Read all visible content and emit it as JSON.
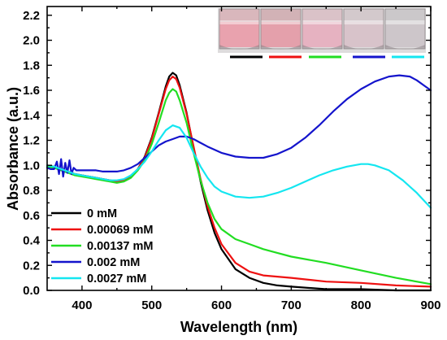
{
  "chart_data": {
    "type": "line",
    "title": "",
    "xlabel": "Wavelength (nm)",
    "ylabel": "Absorbance (a.u.)",
    "xlim": [
      350,
      900
    ],
    "ylim": [
      0,
      2.27
    ],
    "xticks": [
      400,
      500,
      600,
      700,
      800,
      900
    ],
    "xtick_labels": [
      "400",
      "500",
      "600",
      "700",
      "800",
      "900"
    ],
    "yticks": [
      0,
      0.2,
      0.4,
      0.6,
      0.8,
      1.0,
      1.2,
      1.4,
      1.6,
      1.8,
      2.0,
      2.2
    ],
    "ytick_labels": [
      "0.0",
      "0.2",
      "0.4",
      "0.6",
      "0.8",
      "1.0",
      "1.2",
      "1.4",
      "1.6",
      "1.8",
      "2.0",
      "2.2"
    ],
    "grid": false,
    "legend_position": "lower-left",
    "series": [
      {
        "name": "0 mM",
        "color": "#000000",
        "x": [
          350,
          360,
          370,
          380,
          390,
          400,
          410,
          420,
          430,
          440,
          450,
          460,
          470,
          480,
          490,
          500,
          510,
          520,
          525,
          530,
          535,
          540,
          550,
          560,
          570,
          580,
          590,
          600,
          620,
          640,
          660,
          680,
          700,
          750,
          800,
          850,
          900
        ],
        "y": [
          1.0,
          0.99,
          0.97,
          0.95,
          0.93,
          0.92,
          0.91,
          0.9,
          0.89,
          0.88,
          0.87,
          0.88,
          0.91,
          0.97,
          1.07,
          1.22,
          1.42,
          1.63,
          1.71,
          1.74,
          1.72,
          1.64,
          1.42,
          1.14,
          0.87,
          0.64,
          0.46,
          0.33,
          0.17,
          0.1,
          0.06,
          0.04,
          0.03,
          0.01,
          0.01,
          0.0,
          0.0
        ]
      },
      {
        "name": "0.00069 mM",
        "color": "#ee1111",
        "x": [
          350,
          360,
          370,
          380,
          390,
          400,
          410,
          420,
          430,
          440,
          450,
          460,
          470,
          480,
          490,
          500,
          510,
          520,
          525,
          530,
          535,
          540,
          550,
          560,
          570,
          580,
          590,
          600,
          620,
          640,
          660,
          680,
          700,
          750,
          800,
          850,
          900
        ],
        "y": [
          1.0,
          0.99,
          0.97,
          0.95,
          0.93,
          0.92,
          0.91,
          0.9,
          0.89,
          0.88,
          0.87,
          0.88,
          0.91,
          0.97,
          1.06,
          1.21,
          1.41,
          1.61,
          1.68,
          1.71,
          1.69,
          1.62,
          1.41,
          1.15,
          0.89,
          0.67,
          0.5,
          0.37,
          0.22,
          0.15,
          0.12,
          0.11,
          0.1,
          0.07,
          0.06,
          0.04,
          0.03
        ]
      },
      {
        "name": "0.00137 mM",
        "color": "#22dd22",
        "x": [
          350,
          360,
          370,
          380,
          390,
          400,
          410,
          420,
          430,
          440,
          450,
          460,
          470,
          480,
          490,
          500,
          510,
          520,
          525,
          530,
          535,
          540,
          550,
          560,
          570,
          580,
          590,
          600,
          620,
          640,
          660,
          680,
          700,
          750,
          800,
          850,
          900
        ],
        "y": [
          0.99,
          0.98,
          0.96,
          0.94,
          0.92,
          0.91,
          0.9,
          0.89,
          0.88,
          0.87,
          0.86,
          0.87,
          0.9,
          0.96,
          1.04,
          1.17,
          1.34,
          1.52,
          1.58,
          1.61,
          1.59,
          1.52,
          1.34,
          1.1,
          0.88,
          0.7,
          0.57,
          0.49,
          0.41,
          0.37,
          0.33,
          0.3,
          0.27,
          0.22,
          0.16,
          0.1,
          0.05
        ]
      },
      {
        "name": "0.002 mM",
        "color": "#1414cc",
        "x": [
          350,
          355,
          360,
          364,
          367,
          370,
          373,
          376,
          379,
          382,
          385,
          388,
          392,
          400,
          410,
          420,
          430,
          440,
          450,
          460,
          470,
          480,
          490,
          500,
          510,
          520,
          530,
          540,
          550,
          560,
          570,
          580,
          600,
          620,
          640,
          660,
          680,
          700,
          720,
          740,
          760,
          780,
          800,
          820,
          840,
          855,
          870,
          880,
          890,
          900
        ],
        "y": [
          0.98,
          0.97,
          0.97,
          1.03,
          0.93,
          1.05,
          0.91,
          1.02,
          0.94,
          1.04,
          0.93,
          0.98,
          0.96,
          0.96,
          0.96,
          0.96,
          0.95,
          0.95,
          0.95,
          0.96,
          0.98,
          1.01,
          1.06,
          1.11,
          1.16,
          1.19,
          1.21,
          1.23,
          1.23,
          1.21,
          1.18,
          1.15,
          1.1,
          1.07,
          1.06,
          1.06,
          1.09,
          1.14,
          1.22,
          1.32,
          1.43,
          1.53,
          1.61,
          1.67,
          1.71,
          1.72,
          1.71,
          1.68,
          1.64,
          1.6
        ]
      },
      {
        "name": "0.0027 mM",
        "color": "#14e6f0",
        "x": [
          350,
          360,
          370,
          380,
          390,
          400,
          410,
          420,
          430,
          440,
          450,
          460,
          470,
          480,
          490,
          500,
          510,
          520,
          530,
          540,
          550,
          560,
          570,
          580,
          590,
          600,
          620,
          640,
          660,
          680,
          700,
          720,
          740,
          760,
          780,
          800,
          810,
          820,
          840,
          860,
          880,
          900
        ],
        "y": [
          1.0,
          0.99,
          0.97,
          0.95,
          0.93,
          0.92,
          0.91,
          0.9,
          0.89,
          0.88,
          0.88,
          0.89,
          0.92,
          0.97,
          1.03,
          1.11,
          1.2,
          1.28,
          1.32,
          1.3,
          1.22,
          1.1,
          0.99,
          0.9,
          0.83,
          0.79,
          0.75,
          0.74,
          0.75,
          0.78,
          0.82,
          0.87,
          0.92,
          0.96,
          0.99,
          1.01,
          1.01,
          1.0,
          0.96,
          0.88,
          0.78,
          0.66
        ]
      }
    ]
  },
  "inset": {
    "vial_liquid_colors": [
      "#e9a2ae",
      "#e4a0ab",
      "#e6b2c1",
      "#d8c3ca",
      "#cdc6ca"
    ],
    "vial_top_colors": [
      "#d9b7bc",
      "#d2b2b6",
      "#dac2c8",
      "#d3c9cc",
      "#cbc8ca"
    ],
    "background_color": "#dedcdd"
  }
}
